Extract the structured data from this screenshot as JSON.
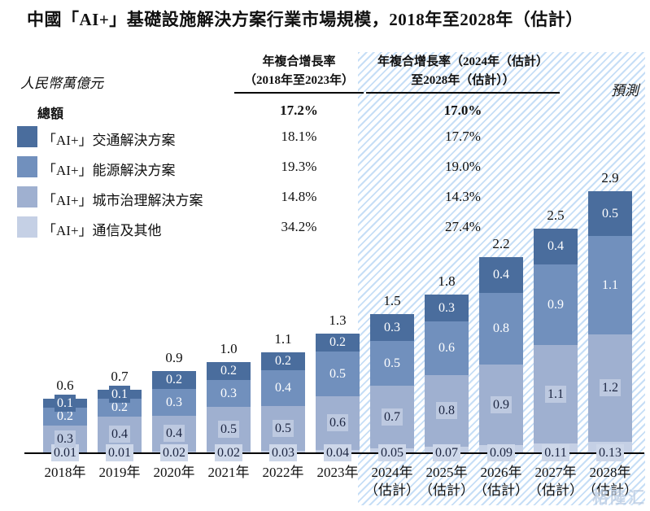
{
  "title": "中國「AI+」基礎設施解決方案行業市場規模，2018年至2028年（估計）",
  "unit_label": "人民幣萬億元",
  "forecast_label": "預測",
  "cagr_header_1": {
    "line1": "年複合增長率",
    "line2": "（2018年至2023年）"
  },
  "cagr_header_2": {
    "line1": "年複合增長率（2024年（估計）",
    "line2": "至2028年（估計））"
  },
  "legend": {
    "total": {
      "label": "總額",
      "cagr_2018_2023": "17.2%",
      "cagr_2024_2028": "17.0%"
    },
    "items": [
      {
        "label": "「AI+」交通解決方案",
        "cagr_2018_2023": "18.1%",
        "cagr_2024_2028": "17.7%",
        "color": "#4a6d9d"
      },
      {
        "label": "「AI+」能源解決方案",
        "cagr_2018_2023": "19.3%",
        "cagr_2024_2028": "19.0%",
        "color": "#7190bd"
      },
      {
        "label": "「AI+」城市治理解決方案",
        "cagr_2018_2023": "14.8%",
        "cagr_2024_2028": "14.3%",
        "color": "#9fb0d0"
      },
      {
        "label": "「AI+」通信及其他",
        "cagr_2018_2023": "34.2%",
        "cagr_2024_2028": "27.4%",
        "color": "#c5d0e5"
      }
    ]
  },
  "watermark": "格隆汇",
  "chart_data": {
    "type": "bar",
    "stacked": true,
    "title": "中國「AI+」基礎設施解決方案行業市場規模，2018年至2028年（估計）",
    "ylabel": "人民幣萬億元",
    "ylim": [
      0,
      3.2
    ],
    "grid": false,
    "categories": [
      "2018年",
      "2019年",
      "2020年",
      "2021年",
      "2022年",
      "2023年",
      "2024年",
      "2025年",
      "2026年",
      "2027年",
      "2028年"
    ],
    "estimate_suffix": "（估計）",
    "forecast_start_index": 6,
    "stack_order": "bottom-to-top",
    "series": [
      {
        "name": "「AI+」通信及其他",
        "color": "#c5d0e5",
        "label_color": "#1b2440",
        "label_chip": "#cdd7e9",
        "values": [
          0.01,
          0.01,
          0.02,
          0.02,
          0.03,
          0.04,
          0.05,
          0.07,
          0.09,
          0.11,
          0.13
        ]
      },
      {
        "name": "「AI+」城市治理解決方案",
        "color": "#9fb0d0",
        "label_color": "#1b2440",
        "label_chip": "#bdc9e0",
        "values": [
          0.3,
          0.4,
          0.4,
          0.5,
          0.5,
          0.6,
          0.7,
          0.8,
          0.9,
          1.1,
          1.2
        ]
      },
      {
        "name": "「AI+」能源解決方案",
        "color": "#7190bd",
        "label_color": "#ffffff",
        "values": [
          0.2,
          0.2,
          0.3,
          0.3,
          0.4,
          0.5,
          0.5,
          0.6,
          0.8,
          0.9,
          1.1
        ]
      },
      {
        "name": "「AI+」交通解決方案",
        "color": "#4a6d9d",
        "label_color": "#ffffff",
        "values": [
          0.1,
          0.1,
          0.2,
          0.2,
          0.2,
          0.2,
          0.3,
          0.3,
          0.4,
          0.4,
          0.5
        ]
      }
    ],
    "totals": [
      0.6,
      0.7,
      0.9,
      1.0,
      1.1,
      1.3,
      1.5,
      1.8,
      2.2,
      2.5,
      2.9
    ]
  }
}
